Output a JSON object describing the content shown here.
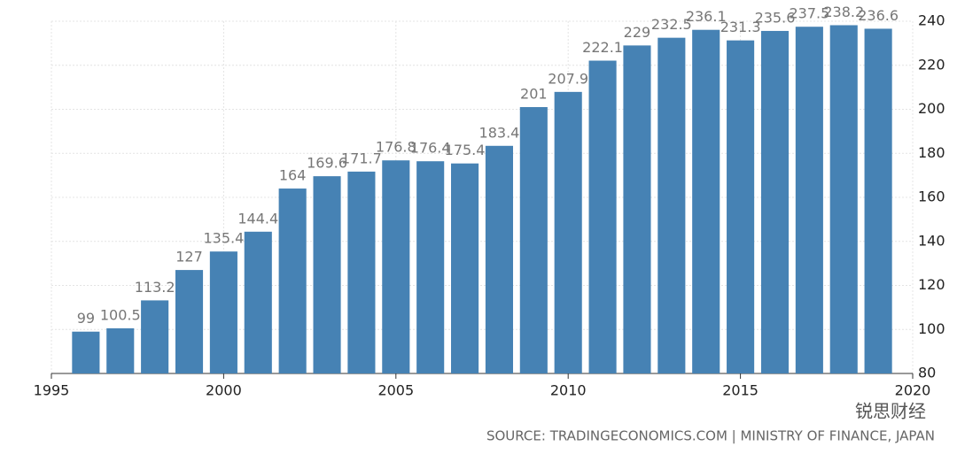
{
  "chart_data": {
    "type": "bar",
    "x": [
      1996,
      1997,
      1998,
      1999,
      2000,
      2001,
      2002,
      2003,
      2004,
      2005,
      2006,
      2007,
      2008,
      2009,
      2010,
      2011,
      2012,
      2013,
      2014,
      2015,
      2016,
      2017,
      2018,
      2019
    ],
    "values": [
      99,
      100.5,
      113.2,
      127,
      135.4,
      144.4,
      164,
      169.6,
      171.7,
      176.8,
      176.4,
      175.4,
      183.4,
      201,
      207.9,
      222.1,
      229,
      232.5,
      236.1,
      231.3,
      235.6,
      237.5,
      238.2,
      236.6
    ],
    "color": "#4682b4",
    "xlim": [
      1995,
      2020
    ],
    "xticks": [
      1995,
      2000,
      2005,
      2010,
      2015,
      2020
    ],
    "ylim": [
      80,
      240
    ],
    "yticks": [
      80,
      100,
      120,
      140,
      160,
      180,
      200,
      220,
      240
    ],
    "grid": true,
    "source": "SOURCE: TRADINGECONOMICS.COM | MINISTRY OF FINANCE, JAPAN",
    "watermark": "锐思财经"
  }
}
